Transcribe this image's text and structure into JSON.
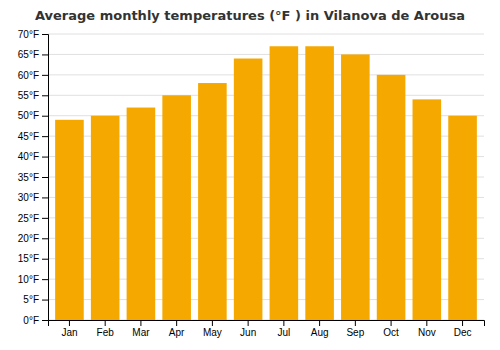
{
  "chart_data": {
    "type": "bar",
    "title": "Average monthly temperatures (°F ) in Vilanova de Arousa",
    "categories": [
      "Jan",
      "Feb",
      "Mar",
      "Apr",
      "May",
      "Jun",
      "Jul",
      "Aug",
      "Sep",
      "Oct",
      "Nov",
      "Dec"
    ],
    "values": [
      49,
      50,
      52,
      55,
      58,
      64,
      67,
      67,
      65,
      60,
      54,
      50
    ],
    "color": "#F5A800",
    "ylim": [
      0,
      70
    ],
    "yticks": [
      {
        "value": 0,
        "label": "0°F"
      },
      {
        "value": 5,
        "label": "5°F"
      },
      {
        "value": 10,
        "label": "10°F"
      },
      {
        "value": 15,
        "label": "15°F"
      },
      {
        "value": 20,
        "label": "20°F"
      },
      {
        "value": 25,
        "label": "25°F"
      },
      {
        "value": 30,
        "label": "30°F"
      },
      {
        "value": 35,
        "label": "35°F"
      },
      {
        "value": 40,
        "label": "40°F"
      },
      {
        "value": 45,
        "label": "45°F"
      },
      {
        "value": 50,
        "label": "50°F"
      },
      {
        "value": 55,
        "label": "55°F"
      },
      {
        "value": 60,
        "label": "60°F"
      },
      {
        "value": 65,
        "label": "65°F"
      },
      {
        "value": 70,
        "label": "70°F"
      }
    ],
    "grid": true
  }
}
